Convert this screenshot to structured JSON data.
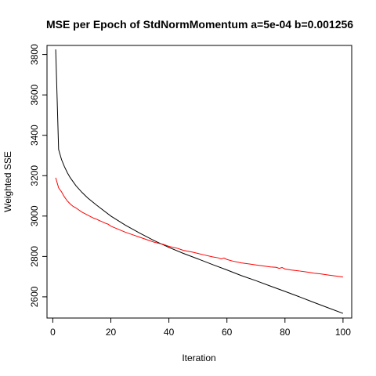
{
  "chart_data": {
    "type": "line",
    "title": "MSE per Epoch of StdNormMomentum a=5e-04 b=0.001256",
    "xlabel": "Iteration",
    "ylabel": "Weighted SSE",
    "xlim": [
      -2,
      103
    ],
    "ylim": [
      2495,
      3845
    ],
    "xticks": [
      0,
      20,
      40,
      60,
      80,
      100
    ],
    "yticks": [
      2600,
      2800,
      3000,
      3200,
      3400,
      3600,
      3800
    ],
    "grid": false,
    "legend": "none",
    "series": [
      {
        "color": "#000000",
        "x": [
          1,
          2,
          3,
          4,
          5,
          6,
          8,
          10,
          12,
          15,
          20,
          25,
          30,
          35,
          40,
          45,
          50,
          55,
          60,
          65,
          70,
          75,
          80,
          85,
          90,
          95,
          100
        ],
        "y": [
          3825,
          3330,
          3280,
          3245,
          3215,
          3190,
          3150,
          3118,
          3090,
          3055,
          3000,
          2955,
          2915,
          2878,
          2845,
          2815,
          2788,
          2760,
          2733,
          2705,
          2680,
          2653,
          2627,
          2600,
          2572,
          2545,
          2518
        ]
      },
      {
        "color": "#ff0000",
        "x": [
          1,
          2,
          3,
          4,
          5,
          6,
          7,
          8,
          10,
          12,
          14,
          15,
          16,
          17,
          18,
          19,
          20,
          22,
          25,
          28,
          30,
          33,
          35,
          38,
          40,
          43,
          45,
          48,
          50,
          52,
          55,
          57,
          58,
          59,
          60,
          62,
          65,
          68,
          70,
          73,
          75,
          77,
          78,
          79,
          80,
          82,
          85,
          88,
          90,
          92,
          95,
          97,
          98,
          99,
          100
        ],
        "y": [
          3190,
          3140,
          3120,
          3095,
          3075,
          3060,
          3048,
          3040,
          3020,
          3005,
          2990,
          2985,
          2978,
          2972,
          2965,
          2960,
          2950,
          2938,
          2920,
          2905,
          2895,
          2880,
          2870,
          2860,
          2850,
          2840,
          2830,
          2822,
          2815,
          2808,
          2798,
          2793,
          2788,
          2792,
          2785,
          2777,
          2768,
          2762,
          2758,
          2752,
          2748,
          2746,
          2741,
          2745,
          2738,
          2733,
          2728,
          2722,
          2717,
          2714,
          2708,
          2704,
          2702,
          2700,
          2698
        ]
      }
    ]
  }
}
